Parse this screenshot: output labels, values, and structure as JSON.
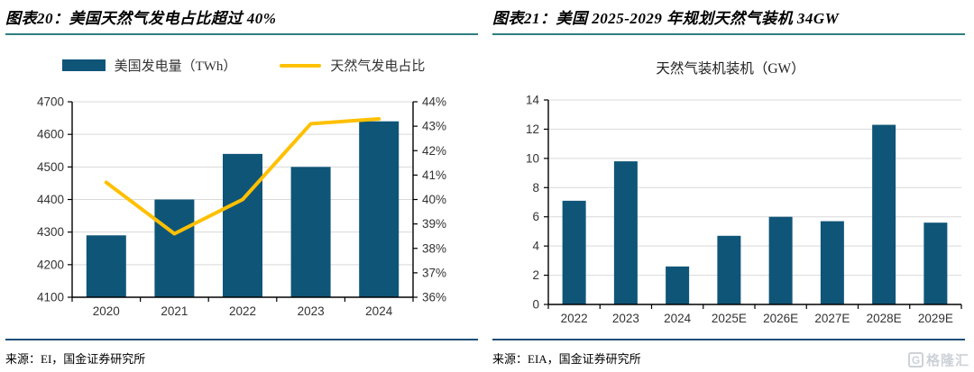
{
  "left_panel": {
    "header": "图表20：美国天然气发电占比超过 40%",
    "legend": [
      {
        "label": "美国发电量（TWh）",
        "swatch": "bar",
        "color": "#0F5578"
      },
      {
        "label": "天然气发电占比",
        "swatch": "line",
        "color": "#FFC000"
      }
    ],
    "source": "来源：EI，国金证券研究所"
  },
  "right_panel": {
    "header": "图表21：美国 2025-2029 年规划天然气装机 34GW",
    "subtitle": "天然气装机装机（GW）",
    "source": "来源：EIA，国金证券研究所"
  },
  "watermark": {
    "icon_letter": "G",
    "text": "格隆汇"
  },
  "colors": {
    "bar": "#0F5578",
    "line": "#FFC000",
    "grid": "#D9D9D9",
    "axis": "#000000",
    "header_rule": "#2F7F7F",
    "footer_rule": "#1F4E79"
  },
  "chart_data": [
    {
      "type": "bar",
      "subtype": "combo-bar-line",
      "categories": [
        "2020",
        "2021",
        "2022",
        "2023",
        "2024"
      ],
      "series": [
        {
          "name": "美国发电量（TWh）",
          "type": "bar",
          "axis": "left",
          "color": "#0F5578",
          "values": [
            4290,
            4400,
            4540,
            4500,
            4640
          ]
        },
        {
          "name": "天然气发电占比",
          "type": "line",
          "axis": "right",
          "color": "#FFC000",
          "values": [
            40.7,
            38.6,
            40.0,
            43.1,
            43.3
          ]
        }
      ],
      "left_axis": {
        "min": 4100,
        "max": 4700,
        "step": 100,
        "suffix": ""
      },
      "right_axis": {
        "min": 36,
        "max": 44,
        "step": 1,
        "suffix": "%"
      },
      "grid": true,
      "legend_position": "top",
      "title": ""
    },
    {
      "type": "bar",
      "categories": [
        "2022",
        "2023",
        "2024",
        "2025E",
        "2026E",
        "2027E",
        "2028E",
        "2029E"
      ],
      "values": [
        7.1,
        9.8,
        2.6,
        4.7,
        6.0,
        5.7,
        12.3,
        5.6
      ],
      "title": "天然气装机装机（GW）",
      "xlabel": "",
      "ylabel": "",
      "ylim": [
        0,
        14
      ],
      "ystep": 2,
      "grid": true,
      "legend_position": "none"
    }
  ]
}
